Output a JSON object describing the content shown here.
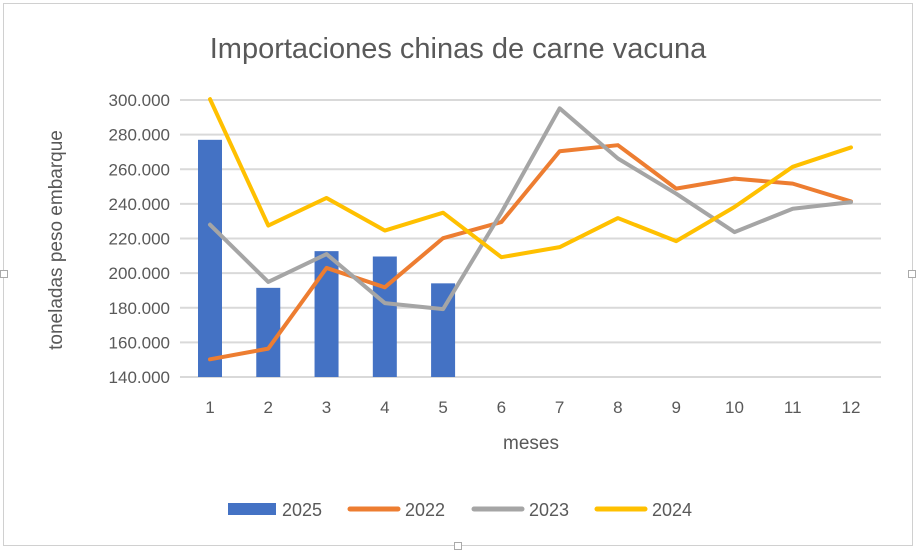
{
  "chart_data": {
    "type": "bar+line",
    "title": "Importaciones chinas de carne vacuna",
    "xlabel": "meses",
    "ylabel": "toneladas peso embarque",
    "categories": [
      "1",
      "2",
      "3",
      "4",
      "5",
      "6",
      "7",
      "8",
      "9",
      "10",
      "11",
      "12"
    ],
    "ylim": [
      140000,
      300000
    ],
    "yticks": [
      "140.000",
      "160.000",
      "180.000",
      "200.000",
      "220.000",
      "240.000",
      "260.000",
      "280.000",
      "300.000"
    ],
    "ytick_values": [
      140000,
      160000,
      180000,
      200000,
      220000,
      240000,
      260000,
      280000,
      300000
    ],
    "grid": true,
    "legend_position": "bottom",
    "series": [
      {
        "name": "2025",
        "kind": "bar",
        "color": "#4472C4",
        "values": [
          277000,
          191500,
          212700,
          209600,
          194100,
          null,
          null,
          null,
          null,
          null,
          null,
          null
        ]
      },
      {
        "name": "2022",
        "kind": "line",
        "color": "#ED7D31",
        "values": [
          150200,
          156400,
          203000,
          191800,
          220200,
          229500,
          270400,
          273900,
          248800,
          254600,
          251700,
          241400
        ]
      },
      {
        "name": "2023",
        "kind": "line",
        "color": "#A5A5A5",
        "values": [
          228000,
          194900,
          211000,
          182700,
          179200,
          235000,
          295200,
          266200,
          245900,
          223700,
          237200,
          241000
        ]
      },
      {
        "name": "2024",
        "kind": "line",
        "color": "#FFC000",
        "values": [
          300500,
          227500,
          243400,
          224600,
          234900,
          209200,
          215000,
          231800,
          218500,
          238200,
          261400,
          272600
        ]
      }
    ]
  }
}
